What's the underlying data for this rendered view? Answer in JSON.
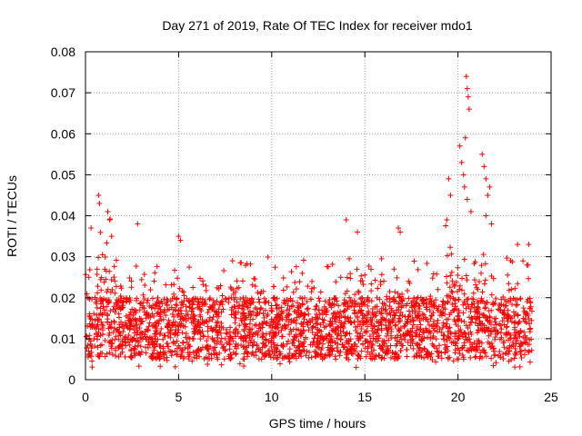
{
  "chart_data": {
    "type": "scatter",
    "title": "Day 271 of 2019, Rate Of TEC Index for receiver mdo1",
    "xlabel": "GPS time / hours",
    "ylabel": "ROTI / TECUs",
    "xlim": [
      0,
      25
    ],
    "ylim": [
      0,
      0.08
    ],
    "x_ticks": [
      0,
      5,
      10,
      15,
      20,
      25
    ],
    "x_tick_labels": [
      "0",
      "5",
      "10",
      "15",
      "20",
      "25"
    ],
    "y_ticks": [
      0,
      0.01,
      0.02,
      0.03,
      0.04,
      0.05,
      0.06,
      0.07,
      0.08
    ],
    "y_tick_labels": [
      "0",
      "0.01",
      "0.02",
      "0.03",
      "0.04",
      "0.05",
      "0.06",
      "0.07",
      "0.08"
    ],
    "grid": true,
    "marker": "plus",
    "color": "#ff0000",
    "series": [
      {
        "name": "ROTI",
        "x_range": [
          0,
          24
        ],
        "typical_range": [
          0.004,
          0.022
        ],
        "notable_points": [
          {
            "x": 0.3,
            "y": 0.037
          },
          {
            "x": 0.7,
            "y": 0.045
          },
          {
            "x": 0.75,
            "y": 0.043
          },
          {
            "x": 1.2,
            "y": 0.041
          },
          {
            "x": 1.3,
            "y": 0.039
          },
          {
            "x": 1.4,
            "y": 0.035
          },
          {
            "x": 2.8,
            "y": 0.038
          },
          {
            "x": 5.0,
            "y": 0.035
          },
          {
            "x": 5.1,
            "y": 0.034
          },
          {
            "x": 7.9,
            "y": 0.029
          },
          {
            "x": 14.0,
            "y": 0.039
          },
          {
            "x": 14.6,
            "y": 0.036
          },
          {
            "x": 16.8,
            "y": 0.037
          },
          {
            "x": 16.9,
            "y": 0.036
          },
          {
            "x": 19.5,
            "y": 0.049
          },
          {
            "x": 19.6,
            "y": 0.045
          },
          {
            "x": 19.4,
            "y": 0.039
          },
          {
            "x": 20.1,
            "y": 0.057
          },
          {
            "x": 20.2,
            "y": 0.053
          },
          {
            "x": 20.3,
            "y": 0.05
          },
          {
            "x": 20.35,
            "y": 0.047
          },
          {
            "x": 20.4,
            "y": 0.059
          },
          {
            "x": 20.45,
            "y": 0.074
          },
          {
            "x": 20.5,
            "y": 0.071
          },
          {
            "x": 20.55,
            "y": 0.069
          },
          {
            "x": 20.6,
            "y": 0.066
          },
          {
            "x": 20.5,
            "y": 0.044
          },
          {
            "x": 20.7,
            "y": 0.041
          },
          {
            "x": 21.3,
            "y": 0.055
          },
          {
            "x": 21.4,
            "y": 0.052
          },
          {
            "x": 21.5,
            "y": 0.049
          },
          {
            "x": 21.6,
            "y": 0.045
          },
          {
            "x": 21.7,
            "y": 0.047
          },
          {
            "x": 21.5,
            "y": 0.04
          },
          {
            "x": 21.8,
            "y": 0.038
          },
          {
            "x": 23.2,
            "y": 0.033
          },
          {
            "x": 23.8,
            "y": 0.033
          }
        ]
      }
    ]
  }
}
